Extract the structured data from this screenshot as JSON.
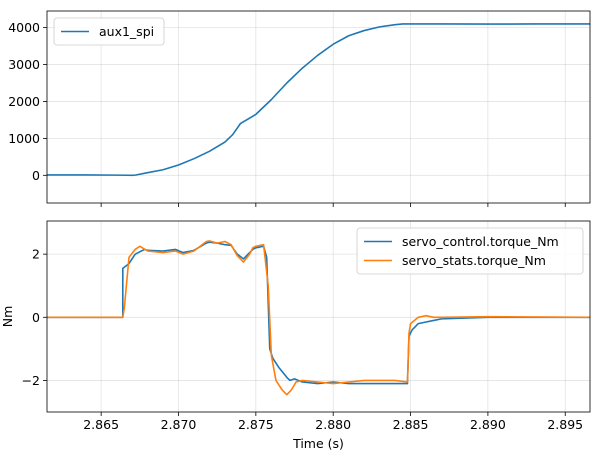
{
  "chart_data": [
    {
      "type": "line",
      "xlim": [
        2.8615,
        2.8966
      ],
      "ylim": [
        -750,
        4450
      ],
      "xlabel": "",
      "ylabel": "",
      "grid": true,
      "legend_position": "top-left",
      "yticks": [
        0,
        1000,
        2000,
        3000,
        4000
      ],
      "ytick_labels": [
        "0",
        "1000",
        "2000",
        "3000",
        "4000"
      ],
      "xticks": [
        2.865,
        2.87,
        2.875,
        2.88,
        2.885,
        2.89,
        2.895
      ],
      "xtick_labels_visible": false,
      "series": [
        {
          "name": "aux1_spi",
          "color": "#1f77b4",
          "x": [
            2.8615,
            2.862,
            2.864,
            2.866,
            2.867,
            2.8672,
            2.868,
            2.869,
            2.87,
            2.871,
            2.872,
            2.873,
            2.8735,
            2.874,
            2.875,
            2.876,
            2.877,
            2.878,
            2.879,
            2.88,
            2.881,
            2.882,
            2.883,
            2.884,
            2.8845,
            2.8855,
            2.887,
            2.89,
            2.893,
            2.8966
          ],
          "y": [
            10,
            10,
            10,
            5,
            0,
            5,
            70,
            150,
            280,
            450,
            650,
            900,
            1100,
            1400,
            1650,
            2050,
            2500,
            2900,
            3250,
            3550,
            3780,
            3920,
            4020,
            4080,
            4100,
            4100,
            4100,
            4095,
            4100,
            4100
          ]
        }
      ]
    },
    {
      "type": "line",
      "xlim": [
        2.8615,
        2.8966
      ],
      "ylim": [
        -3.0,
        3.05
      ],
      "xlabel": "Time (s)",
      "ylabel": "Nm",
      "grid": true,
      "legend_position": "top-right",
      "yticks": [
        -2,
        0,
        2
      ],
      "ytick_labels": [
        "−2",
        "0",
        "2"
      ],
      "xticks": [
        2.865,
        2.87,
        2.875,
        2.88,
        2.885,
        2.89,
        2.895
      ],
      "xtick_labels": [
        "2.865",
        "2.870",
        "2.875",
        "2.880",
        "2.885",
        "2.890",
        "2.895"
      ],
      "series": [
        {
          "name": "servo_control.torque_Nm",
          "color": "#1f77b4",
          "x": [
            2.8615,
            2.8664,
            2.8664,
            2.8668,
            2.8672,
            2.8678,
            2.868,
            2.869,
            2.8698,
            2.8703,
            2.871,
            2.8718,
            2.872,
            2.8725,
            2.873,
            2.8734,
            2.8738,
            2.8742,
            2.8746,
            2.8748,
            2.875,
            2.8755,
            2.8757,
            2.8759,
            2.8761,
            2.8765,
            2.877,
            2.8772,
            2.8775,
            2.878,
            2.879,
            2.88,
            2.881,
            2.882,
            2.883,
            2.884,
            2.8848,
            2.8849,
            2.8851,
            2.8855,
            2.886,
            2.8865,
            2.887,
            2.89,
            2.8966
          ],
          "y": [
            0.0,
            0.0,
            1.55,
            1.7,
            2.0,
            2.15,
            2.12,
            2.1,
            2.15,
            2.05,
            2.12,
            2.35,
            2.38,
            2.35,
            2.3,
            2.28,
            2.0,
            1.85,
            2.05,
            2.15,
            2.2,
            2.25,
            1.9,
            -1.0,
            -1.3,
            -1.6,
            -1.9,
            -2.0,
            -1.95,
            -2.05,
            -2.1,
            -2.05,
            -2.1,
            -2.1,
            -2.1,
            -2.1,
            -2.1,
            -0.6,
            -0.4,
            -0.2,
            -0.15,
            -0.1,
            -0.05,
            0.0,
            0.0
          ]
        },
        {
          "name": "servo_stats.torque_Nm",
          "color": "#ff7f0e",
          "x": [
            2.8615,
            2.8664,
            2.8665,
            2.8668,
            2.8672,
            2.8675,
            2.868,
            2.869,
            2.8698,
            2.8703,
            2.871,
            2.8718,
            2.872,
            2.8725,
            2.873,
            2.8734,
            2.8738,
            2.8742,
            2.8746,
            2.8748,
            2.875,
            2.8755,
            2.8758,
            2.876,
            2.8763,
            2.8767,
            2.877,
            2.8773,
            2.8776,
            2.878,
            2.879,
            2.88,
            2.881,
            2.882,
            2.883,
            2.884,
            2.8848,
            2.8849,
            2.885,
            2.8855,
            2.886,
            2.8865,
            2.887,
            2.89,
            2.8966
          ],
          "y": [
            0.0,
            0.0,
            0.3,
            1.9,
            2.15,
            2.25,
            2.1,
            2.05,
            2.1,
            2.0,
            2.1,
            2.4,
            2.42,
            2.35,
            2.4,
            2.3,
            1.95,
            1.75,
            2.0,
            2.2,
            2.25,
            2.3,
            1.0,
            -1.2,
            -2.0,
            -2.3,
            -2.45,
            -2.3,
            -2.05,
            -2.0,
            -2.05,
            -2.1,
            -2.05,
            -2.0,
            -2.0,
            -2.0,
            -2.05,
            -0.5,
            -0.2,
            0.0,
            0.05,
            0.0,
            0.0,
            0.02,
            0.0
          ]
        }
      ]
    }
  ]
}
